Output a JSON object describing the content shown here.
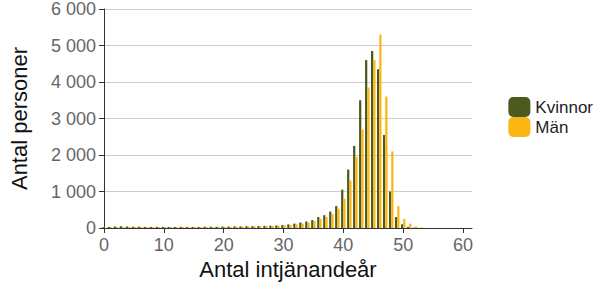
{
  "chart_data": {
    "type": "bar",
    "xlabel": "Antal intjänandeår",
    "ylabel": "Antal personer",
    "x": [
      0,
      1,
      2,
      3,
      4,
      5,
      6,
      7,
      8,
      9,
      10,
      11,
      12,
      13,
      14,
      15,
      16,
      17,
      18,
      19,
      20,
      21,
      22,
      23,
      24,
      25,
      26,
      27,
      28,
      29,
      30,
      31,
      32,
      33,
      34,
      35,
      36,
      37,
      38,
      39,
      40,
      41,
      42,
      43,
      44,
      45,
      46,
      47,
      48,
      49,
      50,
      51,
      52,
      53
    ],
    "series": [
      {
        "name": "Kvinnor",
        "color": "#4b5a1e",
        "values": [
          20,
          30,
          40,
          50,
          40,
          35,
          35,
          30,
          30,
          30,
          30,
          30,
          30,
          30,
          30,
          30,
          30,
          35,
          35,
          35,
          40,
          40,
          45,
          45,
          50,
          50,
          55,
          60,
          65,
          70,
          80,
          100,
          120,
          150,
          180,
          220,
          300,
          350,
          450,
          600,
          1050,
          1600,
          2250,
          3500,
          4600,
          4850,
          4350,
          2550,
          1000,
          300,
          100,
          30,
          10,
          5
        ]
      },
      {
        "name": "Män",
        "color": "#fbb613",
        "values": [
          10,
          20,
          30,
          30,
          30,
          25,
          25,
          25,
          25,
          25,
          25,
          25,
          25,
          25,
          25,
          25,
          25,
          25,
          30,
          30,
          30,
          30,
          35,
          35,
          40,
          40,
          45,
          50,
          55,
          60,
          70,
          80,
          100,
          120,
          150,
          190,
          250,
          300,
          380,
          530,
          800,
          1300,
          1950,
          2700,
          3850,
          4600,
          5300,
          3600,
          2100,
          600,
          250,
          120,
          40,
          10
        ]
      }
    ],
    "xlim": [
      0,
      61.5
    ],
    "xticks": [
      0,
      10,
      20,
      30,
      40,
      50,
      60
    ],
    "ylim": [
      0,
      6000
    ],
    "yticks": [
      0,
      {
        "value": 1000,
        "label": "1 000"
      },
      {
        "value": 2000,
        "label": "2 000"
      },
      {
        "value": 3000,
        "label": "3 000"
      },
      {
        "value": 4000,
        "label": "4 000"
      },
      {
        "value": 5000,
        "label": "5 000"
      },
      {
        "value": 6000,
        "label": "6 000"
      }
    ],
    "grid": true,
    "legend": "right"
  }
}
